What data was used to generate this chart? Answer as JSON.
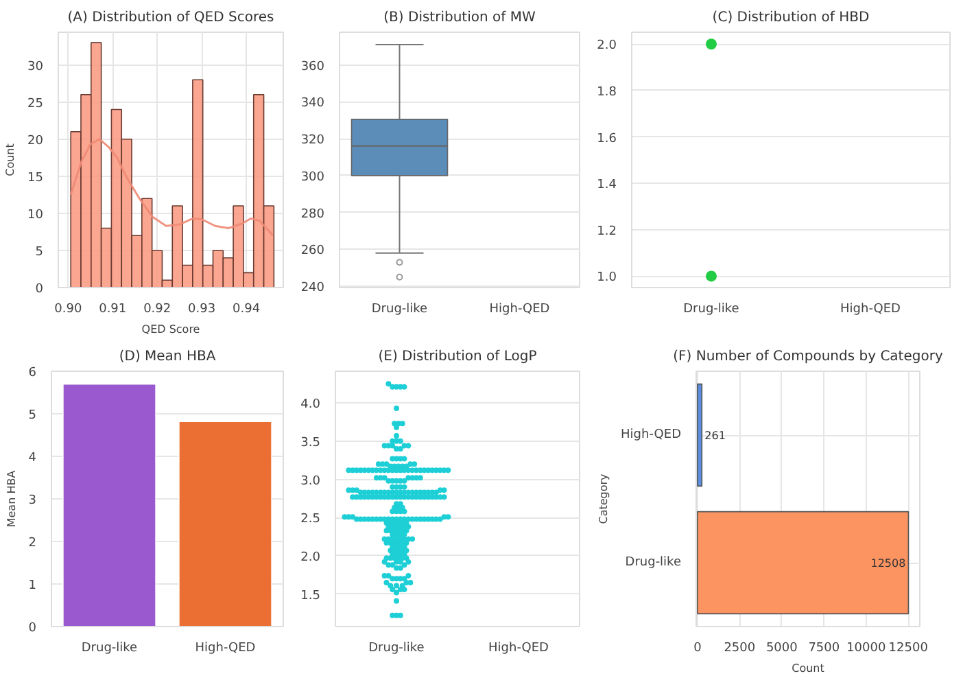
{
  "chart_data": [
    {
      "type": "histogram",
      "title": "(A) Distribution of QED Scores",
      "xlabel": "QED Score",
      "ylabel": "Count",
      "bins": [
        0.9006,
        0.90288,
        0.90516,
        0.90744,
        0.90972,
        0.912,
        0.91428,
        0.91656,
        0.91884,
        0.92112,
        0.9234,
        0.92568,
        0.92796,
        0.93024,
        0.93252,
        0.9348,
        0.93708,
        0.93936,
        0.94164,
        0.94392,
        0.9462
      ],
      "values": [
        21,
        26,
        33,
        8,
        24,
        20,
        7,
        12,
        5,
        1,
        11,
        3,
        28,
        3,
        5,
        4,
        11,
        2,
        26,
        11
      ],
      "color": "#f9967e",
      "series": [
        {
          "type": "line",
          "color": "#f08a76",
          "x": [
            0.9006,
            0.903,
            0.905,
            0.907,
            0.909,
            0.911,
            0.913,
            0.916,
            0.919,
            0.922,
            0.925,
            0.928,
            0.93,
            0.933,
            0.936,
            0.939,
            0.941,
            0.943,
            0.946
          ],
          "values": [
            12.5,
            17,
            19.3,
            20,
            19,
            17.5,
            15,
            12,
            9.5,
            8.3,
            8.5,
            9.3,
            9.2,
            8.3,
            8.0,
            8.6,
            9.3,
            9.0,
            7.0
          ]
        }
      ],
      "xlim": [
        0.8978,
        0.9483
      ],
      "xticks": [
        {
          "value": 0.9,
          "label": "0.90"
        },
        {
          "value": 0.91,
          "label": "0.91"
        },
        {
          "value": 0.92,
          "label": "0.92"
        },
        {
          "value": 0.93,
          "label": "0.93"
        },
        {
          "value": 0.94,
          "label": "0.94"
        }
      ],
      "ylim": [
        0,
        34.4
      ],
      "yticks": [
        0,
        5,
        10,
        15,
        20,
        25,
        30
      ],
      "grid": true
    },
    {
      "type": "box",
      "title": "(B) Distribution of MW",
      "categories": [
        "Drug-like",
        "High-QED"
      ],
      "color": "#5b8db8",
      "boxes": [
        {
          "low": 258,
          "q1": 300,
          "median": 316,
          "q3": 330.5,
          "high": 371,
          "outliers": [
            253,
            245
          ]
        },
        null
      ],
      "ylim": [
        239.3,
        377.7
      ],
      "yticks": [
        240,
        260,
        280,
        300,
        320,
        340,
        360
      ],
      "grid": "y"
    },
    {
      "type": "scatter",
      "title": "(C) Distribution of HBD",
      "categories": [
        "Drug-like",
        "High-QED"
      ],
      "series": [
        {
          "color": "#22cc44",
          "x": [
            "Drug-like",
            "Drug-like"
          ],
          "values": [
            1.0,
            2.0
          ]
        }
      ],
      "ylim": [
        0.951,
        2.051
      ],
      "yticks": [
        {
          "value": 1.0,
          "label": "1.0"
        },
        {
          "value": 1.2,
          "label": "1.2"
        },
        {
          "value": 1.4,
          "label": "1.4"
        },
        {
          "value": 1.6,
          "label": "1.6"
        },
        {
          "value": 1.8,
          "label": "1.8"
        },
        {
          "value": 2.0,
          "label": "2.0"
        }
      ],
      "grid": "y"
    },
    {
      "type": "bar",
      "title": "(D) Mean HBA",
      "ylabel": "Mean HBA",
      "categories": [
        "Drug-like",
        "High-QED"
      ],
      "values": [
        5.7,
        4.82
      ],
      "colors": [
        "#9b59d0",
        "#eb6e32"
      ],
      "ylim": [
        0,
        6
      ],
      "yticks": [
        0,
        1,
        2,
        3,
        4,
        5,
        6
      ],
      "grid": "y"
    },
    {
      "type": "scatter",
      "title": "(E) Distribution of LogP",
      "categories": [
        "Drug-like",
        "High-QED"
      ],
      "series": [
        {
          "color": "#1ecfd6",
          "x": [
            "Drug-like",
            "Drug-like",
            "Drug-like",
            "Drug-like",
            "Drug-like",
            "Drug-like",
            "Drug-like",
            "Drug-like",
            "Drug-like",
            "Drug-like",
            "Drug-like",
            "Drug-like",
            "Drug-like",
            "Drug-like",
            "Drug-like",
            "Drug-like",
            "Drug-like",
            "Drug-like",
            "Drug-like",
            "Drug-like",
            "Drug-like",
            "Drug-like",
            "Drug-like",
            "Drug-like",
            "Drug-like",
            "Drug-like",
            "Drug-like",
            "Drug-like",
            "Drug-like",
            "Drug-like",
            "Drug-like",
            "Drug-like",
            "Drug-like",
            "Drug-like",
            "Drug-like",
            "Drug-like",
            "Drug-like",
            "Drug-like",
            "Drug-like",
            "Drug-like",
            "Drug-like",
            "Drug-like",
            "Drug-like",
            "Drug-like",
            "Drug-like",
            "Drug-like",
            "Drug-like",
            "Drug-like",
            "Drug-like",
            "Drug-like",
            "Drug-like",
            "Drug-like",
            "Drug-like",
            "Drug-like",
            "Drug-like",
            "Drug-like",
            "Drug-like",
            "Drug-like",
            "Drug-like",
            "Drug-like",
            "Drug-like",
            "Drug-like",
            "Drug-like",
            "Drug-like",
            "Drug-like",
            "Drug-like",
            "Drug-like",
            "Drug-like",
            "Drug-like",
            "Drug-like",
            "Drug-like",
            "Drug-like",
            "Drug-like",
            "Drug-like",
            "Drug-like",
            "Drug-like",
            "Drug-like",
            "Drug-like",
            "Drug-like",
            "Drug-like",
            "Drug-like",
            "Drug-like",
            "Drug-like",
            "Drug-like",
            "Drug-like",
            "Drug-like",
            "Drug-like",
            "Drug-like",
            "Drug-like",
            "Drug-like",
            "Drug-like",
            "Drug-like",
            "Drug-like",
            "Drug-like",
            "Drug-like",
            "Drug-like",
            "Drug-like",
            "Drug-like",
            "Drug-like",
            "Drug-like",
            "Drug-like",
            "Drug-like",
            "Drug-like",
            "Drug-like",
            "Drug-like",
            "Drug-like",
            "Drug-like",
            "Drug-like",
            "Drug-like",
            "Drug-like",
            "Drug-like",
            "Drug-like",
            "Drug-like",
            "Drug-like",
            "Drug-like",
            "Drug-like",
            "Drug-like",
            "Drug-like",
            "Drug-like",
            "Drug-like",
            "Drug-like",
            "Drug-like",
            "Drug-like",
            "Drug-like",
            "Drug-like",
            "Drug-like",
            "Drug-like",
            "Drug-like",
            "Drug-like",
            "Drug-like",
            "Drug-like",
            "Drug-like",
            "Drug-like",
            "Drug-like",
            "Drug-like",
            "Drug-like",
            "Drug-like",
            "Drug-like",
            "Drug-like",
            "Drug-like",
            "Drug-like",
            "Drug-like",
            "Drug-like",
            "Drug-like",
            "Drug-like",
            "Drug-like",
            "Drug-like",
            "Drug-like",
            "Drug-like",
            "Drug-like",
            "Drug-like",
            "Drug-like",
            "Drug-like",
            "Drug-like",
            "Drug-like",
            "Drug-like",
            "Drug-like",
            "Drug-like",
            "Drug-like",
            "Drug-like",
            "Drug-like",
            "Drug-like",
            "Drug-like",
            "Drug-like",
            "Drug-like",
            "Drug-like",
            "Drug-like",
            "Drug-like",
            "Drug-like",
            "Drug-like",
            "Drug-like",
            "Drug-like",
            "Drug-like",
            "Drug-like",
            "Drug-like",
            "Drug-like",
            "Drug-like",
            "Drug-like",
            "Drug-like",
            "Drug-like",
            "Drug-like",
            "Drug-like",
            "Drug-like",
            "Drug-like",
            "Drug-like",
            "Drug-like",
            "Drug-like",
            "Drug-like",
            "Drug-like",
            "Drug-like",
            "Drug-like",
            "Drug-like",
            "Drug-like",
            "Drug-like",
            "Drug-like",
            "Drug-like",
            "Drug-like",
            "Drug-like",
            "Drug-like",
            "Drug-like",
            "Drug-like",
            "Drug-like",
            "Drug-like",
            "Drug-like",
            "Drug-like",
            "Drug-like",
            "Drug-like",
            "Drug-like",
            "Drug-like",
            "Drug-like",
            "Drug-like",
            "Drug-like",
            "Drug-like",
            "Drug-like",
            "Drug-like",
            "Drug-like",
            "Drug-like",
            "Drug-like",
            "Drug-like",
            "Drug-like",
            "Drug-like",
            "Drug-like",
            "Drug-like",
            "Drug-like",
            "Drug-like",
            "Drug-like",
            "Drug-like",
            "Drug-like",
            "Drug-like",
            "Drug-like",
            "Drug-like",
            "Drug-like",
            "Drug-like",
            "Drug-like",
            "Drug-like",
            "Drug-like",
            "Drug-like",
            "Drug-like",
            "Drug-like",
            "Drug-like",
            "Drug-like",
            "Drug-like",
            "Drug-like",
            "Drug-like",
            "Drug-like",
            "Drug-like",
            "Drug-like"
          ],
          "values": [
            4.25,
            4.21,
            4.21,
            4.21,
            4.21,
            3.93,
            3.73,
            3.73,
            3.73,
            3.68,
            3.57,
            3.5,
            3.5,
            3.5,
            3.44,
            3.44,
            3.44,
            3.44,
            3.44,
            3.4,
            3.4,
            3.27,
            3.27,
            3.27,
            3.27,
            3.2,
            3.2,
            3.2,
            3.2,
            3.2,
            3.17,
            3.17,
            3.17,
            3.17,
            3.17,
            3.12,
            3.12,
            3.12,
            3.12,
            3.12,
            3.12,
            3.12,
            3.12,
            3.12,
            3.12,
            3.12,
            3.12,
            3.12,
            3.12,
            3.12,
            3.12,
            3.12,
            3.12,
            3.12,
            3.12,
            3.12,
            3.12,
            3.12,
            3.12,
            3.12,
            3.12,
            3.02,
            3.02,
            3.02,
            3.02,
            3.02,
            3.02,
            3.02,
            2.98,
            2.98,
            2.98,
            2.98,
            2.98,
            2.9,
            2.9,
            2.9,
            2.9,
            2.86,
            2.86,
            2.86,
            2.86,
            2.86,
            2.83,
            2.83,
            2.83,
            2.83,
            2.83,
            2.83,
            2.83,
            2.83,
            2.83,
            2.83,
            2.83,
            2.83,
            2.83,
            2.83,
            2.83,
            2.83,
            2.83,
            2.83,
            2.83,
            2.83,
            2.77,
            2.77,
            2.77,
            2.77,
            2.77,
            2.77,
            2.77,
            2.77,
            2.77,
            2.77,
            2.77,
            2.77,
            2.77,
            2.77,
            2.77,
            2.77,
            2.77,
            2.77,
            2.77,
            2.77,
            2.77,
            2.77,
            2.77,
            2.77,
            2.68,
            2.68,
            2.63,
            2.63,
            2.63,
            2.58,
            2.58,
            2.58,
            2.58,
            2.51,
            2.51,
            2.51,
            2.51,
            2.51,
            2.48,
            2.48,
            2.48,
            2.48,
            2.48,
            2.48,
            2.48,
            2.48,
            2.48,
            2.48,
            2.48,
            2.48,
            2.48,
            2.48,
            2.48,
            2.48,
            2.48,
            2.48,
            2.48,
            2.48,
            2.48,
            2.48,
            2.43,
            2.43,
            2.43,
            2.43,
            2.43,
            2.43,
            2.38,
            2.38,
            2.38,
            2.38,
            2.38,
            2.38,
            2.33,
            2.33,
            2.33,
            2.33,
            2.33,
            2.33,
            2.28,
            2.28,
            2.28,
            2.28,
            2.22,
            2.22,
            2.22,
            2.22,
            2.22,
            2.22,
            2.22,
            2.22,
            2.17,
            2.17,
            2.17,
            2.17,
            2.17,
            2.17,
            2.12,
            2.12,
            2.12,
            2.12,
            2.07,
            2.07,
            2.07,
            2.07,
            2.07,
            2.02,
            2.02,
            2.02,
            2.02,
            1.97,
            1.97,
            1.97,
            1.97,
            1.97,
            1.97,
            1.92,
            1.92,
            1.92,
            1.92,
            1.88,
            1.88,
            1.88,
            1.84,
            1.84,
            1.74,
            1.74,
            1.74,
            1.7,
            1.7,
            1.7,
            1.7,
            1.65,
            1.65,
            1.65,
            1.61,
            1.61,
            1.61,
            1.56,
            1.56,
            1.56,
            1.52,
            1.41,
            1.22,
            1.22,
            1.22
          ]
        }
      ],
      "ylim": [
        1.075,
        4.414
      ],
      "yticks": [
        {
          "value": 1.5,
          "label": "1.5"
        },
        {
          "value": 2.0,
          "label": "2.0"
        },
        {
          "value": 2.5,
          "label": "2.5"
        },
        {
          "value": 3.0,
          "label": "3.0"
        },
        {
          "value": 3.5,
          "label": "3.5"
        },
        {
          "value": 4.0,
          "label": "4.0"
        }
      ],
      "grid": "y"
    },
    {
      "type": "bar",
      "orientation": "horizontal",
      "title": "(F) Number of Compounds by Category",
      "xlabel": "Count",
      "ylabel": "Category",
      "categories": [
        "High-QED",
        "Drug-like"
      ],
      "values": [
        261,
        12508
      ],
      "colors": [
        "#5b8ee0",
        "#fc9462"
      ],
      "data_labels": true,
      "xlim": [
        -76,
        13182
      ],
      "xticks": [
        0,
        2500,
        5000,
        7500,
        10000,
        12500
      ],
      "grid": true
    }
  ]
}
